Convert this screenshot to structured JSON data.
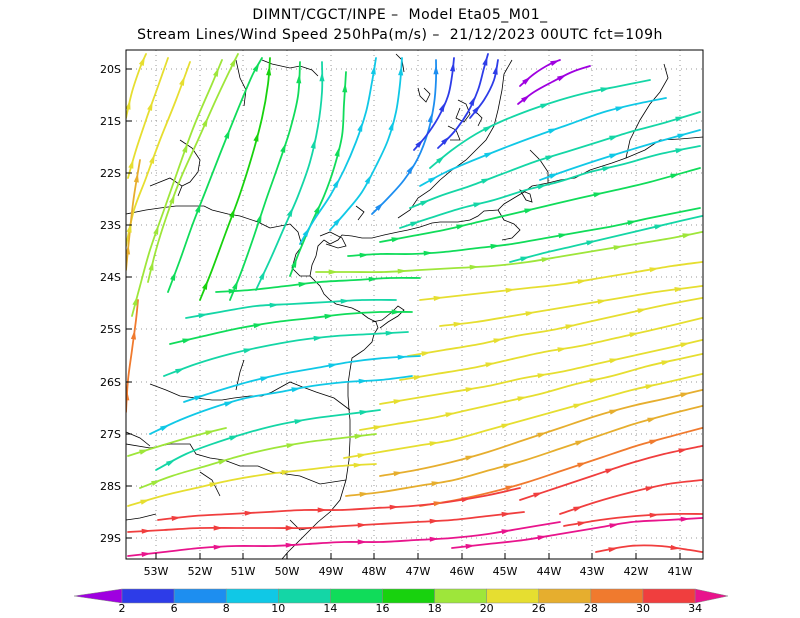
{
  "title_line1": "DIMNT/CGCT/INPE –  Model Eta05_M01_",
  "title_line2": "Stream Lines/Wind Speed 250hPa(m/s) –  21/12/2023 00UTC fct=109h",
  "lat_labels": [
    "20S",
    "21S",
    "22S",
    "23S",
    "24S",
    "25S",
    "26S",
    "27S",
    "28S",
    "29S"
  ],
  "lon_labels": [
    "53W",
    "52W",
    "51W",
    "50W",
    "49W",
    "48W",
    "47W",
    "46W",
    "45W",
    "44W",
    "43W",
    "42W",
    "41W"
  ],
  "colorbar": {
    "labels": [
      "2",
      "6",
      "8",
      "10",
      "14",
      "16",
      "18",
      "20",
      "26",
      "28",
      "30",
      "34"
    ],
    "colors": [
      "#9f00e0",
      "#2d3ce8",
      "#1d8ef0",
      "#10c8e6",
      "#14d6a6",
      "#10dc5a",
      "#18d20e",
      "#9ee63a",
      "#e6de30",
      "#e6ae2e",
      "#f07a2e",
      "#f03e3e",
      "#e8148c"
    ]
  },
  "streamline_colors": {
    "purple": "#9f00e0",
    "blue": "#2d3ce8",
    "lightblue": "#1d8ef0",
    "cyan": "#10c8e6",
    "teal": "#14d6a6",
    "green": "#10dc5a",
    "brightgreen": "#18d20e",
    "yellowgreen": "#9ee63a",
    "yellow": "#e6de30",
    "orange": "#e6ae2e",
    "darkorange": "#f07a2e",
    "red": "#f03e3e",
    "magenta": "#e8148c"
  }
}
